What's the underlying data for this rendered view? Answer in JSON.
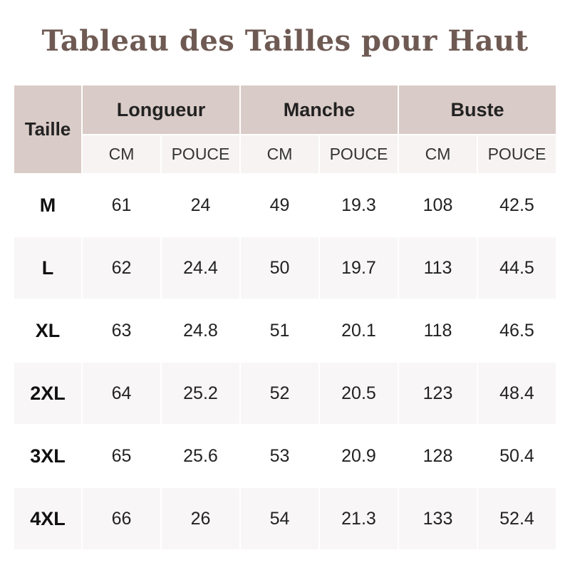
{
  "header": {
    "title": "Tableau des Tailles pour Haut"
  },
  "table": {
    "size_header": "Taille",
    "groups": [
      "Longueur",
      "Manche",
      "Buste"
    ],
    "units": [
      "CM",
      "POUCE",
      "CM",
      "POUCE",
      "CM",
      "POUCE"
    ],
    "rows": [
      [
        "M",
        "61",
        "24",
        "49",
        "19.3",
        "108",
        "42.5"
      ],
      [
        "L",
        "62",
        "24.4",
        "50",
        "19.7",
        "113",
        "44.5"
      ],
      [
        "XL",
        "63",
        "24.8",
        "51",
        "20.1",
        "118",
        "46.5"
      ],
      [
        "2XL",
        "64",
        "25.2",
        "52",
        "20.5",
        "123",
        "48.4"
      ],
      [
        "3XL",
        "65",
        "25.6",
        "53",
        "20.9",
        "128",
        "50.4"
      ],
      [
        "4XL",
        "66",
        "26",
        "54",
        "21.3",
        "133",
        "52.4"
      ]
    ]
  }
}
